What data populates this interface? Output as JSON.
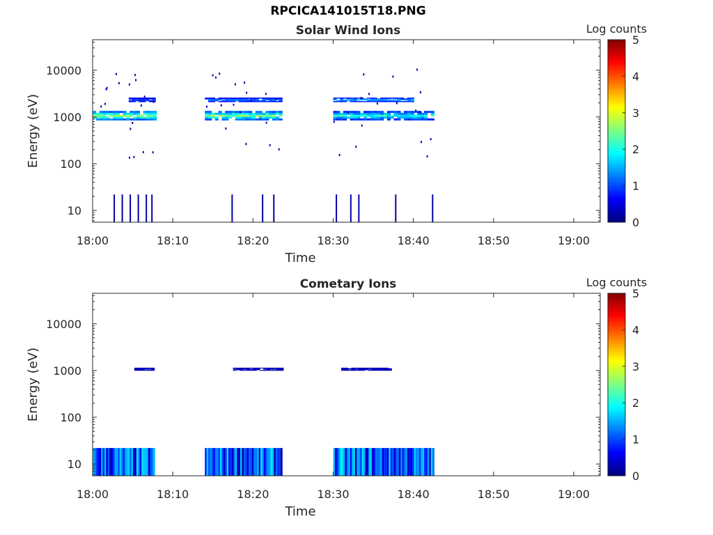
{
  "figure": {
    "title": "RPCICA141015T18.PNG"
  },
  "colors": {
    "axis": "#262626",
    "background": "#ffffff"
  },
  "chart_data": [
    {
      "type": "heatmap",
      "title": "Solar Wind Ions",
      "xlabel": "Time",
      "ylabel": "Energy (eV)",
      "x_ticks": [
        "18:00",
        "18:10",
        "18:20",
        "18:30",
        "18:40",
        "18:50",
        "19:00"
      ],
      "x_range_minutes": [
        0,
        63.3
      ],
      "y_scale": "log",
      "y_ticks": [
        10,
        100,
        1000,
        10000
      ],
      "y_tick_labels": [
        "10",
        "100",
        "1000",
        "10000"
      ],
      "y_range": [
        5.6,
        45000
      ],
      "colorbar": {
        "label": "Log counts",
        "ticks": [
          "0",
          "1",
          "2",
          "3",
          "4",
          "5"
        ],
        "range": [
          0,
          5
        ],
        "colormap": "jet"
      },
      "grid": false,
      "bands": [
        {
          "t_start": 0,
          "t_end": 7.6,
          "e_low": 850,
          "e_high": 1350,
          "peak_log_counts": 3.0
        },
        {
          "t_start": 14.0,
          "t_end": 23.5,
          "e_low": 850,
          "e_high": 1350,
          "peak_log_counts": 2.8
        },
        {
          "t_start": 14.0,
          "t_end": 23.5,
          "e_low": 2100,
          "e_high": 2600,
          "peak_log_counts": 1.5
        },
        {
          "t_start": 30.0,
          "t_end": 42.6,
          "e_low": 850,
          "e_high": 1350,
          "peak_log_counts": 2.3
        },
        {
          "t_start": 30.0,
          "t_end": 40.0,
          "e_low": 2100,
          "e_high": 2600,
          "peak_log_counts": 1.8
        },
        {
          "t_start": 4.5,
          "t_end": 7.5,
          "e_low": 2100,
          "e_high": 2600,
          "peak_log_counts": 1.2
        }
      ],
      "low_energy_spikes": [
        {
          "t": 2.7,
          "e_top": 22,
          "log_counts": 0.2
        },
        {
          "t": 3.7,
          "e_top": 22,
          "log_counts": 0.2
        },
        {
          "t": 4.7,
          "e_top": 22,
          "log_counts": 0.2
        },
        {
          "t": 5.7,
          "e_top": 22,
          "log_counts": 0.2
        },
        {
          "t": 6.7,
          "e_top": 22,
          "log_counts": 0.2
        },
        {
          "t": 7.4,
          "e_top": 22,
          "log_counts": 0.2
        },
        {
          "t": 17.4,
          "e_top": 22,
          "log_counts": 0.2
        },
        {
          "t": 21.2,
          "e_top": 22,
          "log_counts": 0.2
        },
        {
          "t": 22.6,
          "e_top": 22,
          "log_counts": 0.2
        },
        {
          "t": 30.4,
          "e_top": 22,
          "log_counts": 0.2
        },
        {
          "t": 32.2,
          "e_top": 22,
          "log_counts": 0.2
        },
        {
          "t": 33.2,
          "e_top": 22,
          "log_counts": 0.2
        },
        {
          "t": 37.8,
          "e_top": 22,
          "log_counts": 0.2
        },
        {
          "t": 42.4,
          "e_top": 22,
          "log_counts": 0.2
        }
      ]
    },
    {
      "type": "heatmap",
      "title": "Cometary Ions",
      "xlabel": "Time",
      "ylabel": "Energy (eV)",
      "x_ticks": [
        "18:00",
        "18:10",
        "18:20",
        "18:30",
        "18:40",
        "18:50",
        "19:00"
      ],
      "x_range_minutes": [
        0,
        63.3
      ],
      "y_scale": "log",
      "y_ticks": [
        10,
        100,
        1000,
        10000
      ],
      "y_tick_labels": [
        "10",
        "100",
        "1000",
        "10000"
      ],
      "y_range": [
        5.6,
        45000
      ],
      "colorbar": {
        "label": "Log counts",
        "ticks": [
          "0",
          "1",
          "2",
          "3",
          "4",
          "5"
        ],
        "range": [
          0,
          5
        ],
        "colormap": "jet"
      },
      "grid": false,
      "bands": [
        {
          "t_start": 5.2,
          "t_end": 7.5,
          "e_low": 1000,
          "e_high": 1150,
          "peak_log_counts": 0.5
        },
        {
          "t_start": 17.5,
          "t_end": 23.5,
          "e_low": 1000,
          "e_high": 1150,
          "peak_log_counts": 0.5
        },
        {
          "t_start": 31.0,
          "t_end": 37.0,
          "e_low": 1000,
          "e_high": 1150,
          "peak_log_counts": 0.5
        }
      ],
      "low_energy_blocks": [
        {
          "t_start": 0,
          "t_end": 7.6,
          "e_low": 5.6,
          "e_high": 22,
          "peak_log_counts": 1.8
        },
        {
          "t_start": 14.0,
          "t_end": 23.5,
          "e_low": 5.6,
          "e_high": 22,
          "peak_log_counts": 1.8
        },
        {
          "t_start": 30.0,
          "t_end": 42.6,
          "e_low": 5.6,
          "e_high": 22,
          "peak_log_counts": 1.8
        }
      ]
    }
  ]
}
